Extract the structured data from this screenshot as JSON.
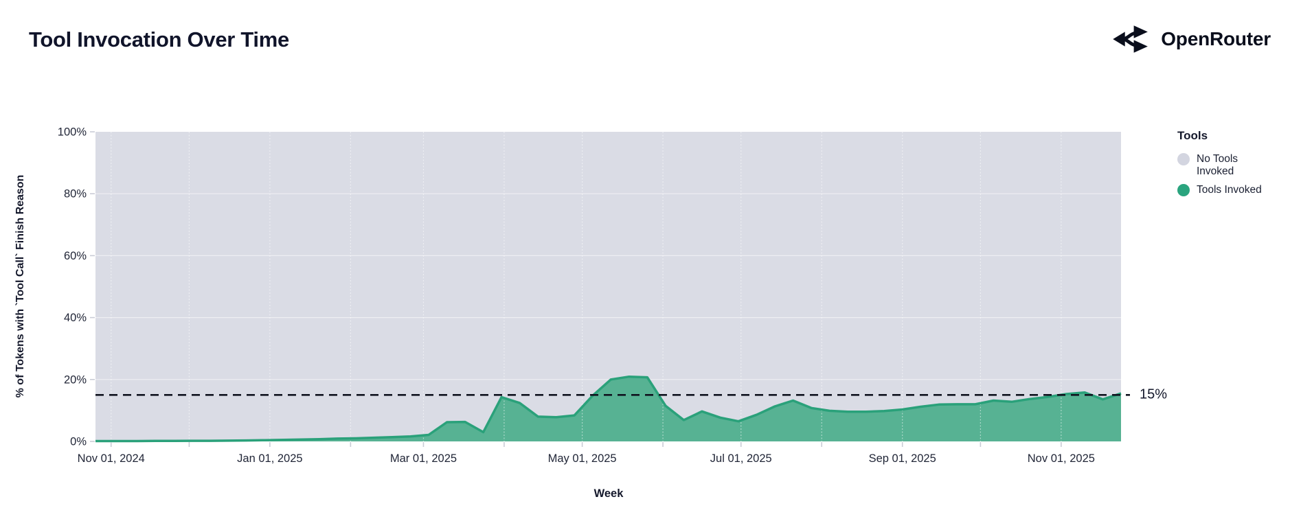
{
  "header": {
    "title": "Tool Invocation Over Time",
    "brand": "OpenRouter"
  },
  "legend": {
    "title": "Tools",
    "items": [
      {
        "label": "No Tools Invoked",
        "color": "#d3d5e0"
      },
      {
        "label": "Tools Invoked",
        "color": "#2aa47e"
      }
    ]
  },
  "annotation": {
    "label": "15%",
    "value": 15
  },
  "chart_data": {
    "type": "area",
    "stacked": true,
    "title": "Tool Invocation Over Time",
    "xlabel": "Week",
    "ylabel": "% of Tokens with `Tool Call` Finish Reason",
    "ylim": [
      0,
      100
    ],
    "grid": true,
    "legend_position": "right",
    "domain": {
      "start": "2024-10-26",
      "end": "2025-11-24"
    },
    "yticks": [
      {
        "value": 0,
        "label": "0%"
      },
      {
        "value": 20,
        "label": "20%"
      },
      {
        "value": 40,
        "label": "40%"
      },
      {
        "value": 60,
        "label": "60%"
      },
      {
        "value": 80,
        "label": "80%"
      },
      {
        "value": 100,
        "label": "100%"
      }
    ],
    "xticks": [
      {
        "date": "2024-11-01",
        "label": "Nov 01, 2024"
      },
      {
        "date": "2025-01-01",
        "label": "Jan 01, 2025"
      },
      {
        "date": "2025-03-01",
        "label": "Mar 01, 2025"
      },
      {
        "date": "2025-05-01",
        "label": "May 01, 2025"
      },
      {
        "date": "2025-07-01",
        "label": "Jul 01, 2025"
      },
      {
        "date": "2025-09-01",
        "label": "Sep 01, 2025"
      },
      {
        "date": "2025-11-01",
        "label": "Nov 01, 2025"
      }
    ],
    "minor_gridline_dates": [
      "2024-11-01",
      "2024-12-01",
      "2025-01-01",
      "2025-02-01",
      "2025-03-01",
      "2025-04-01",
      "2025-05-01",
      "2025-06-01",
      "2025-07-01",
      "2025-08-01",
      "2025-09-01",
      "2025-10-01",
      "2025-11-01"
    ],
    "x": [
      "2024-10-28",
      "2024-11-04",
      "2024-11-11",
      "2024-11-18",
      "2024-11-25",
      "2024-12-02",
      "2024-12-09",
      "2024-12-16",
      "2024-12-23",
      "2024-12-30",
      "2025-01-06",
      "2025-01-13",
      "2025-01-20",
      "2025-01-27",
      "2025-02-03",
      "2025-02-10",
      "2025-02-17",
      "2025-02-24",
      "2025-03-03",
      "2025-03-10",
      "2025-03-17",
      "2025-03-24",
      "2025-03-31",
      "2025-04-07",
      "2025-04-14",
      "2025-04-21",
      "2025-04-28",
      "2025-05-05",
      "2025-05-12",
      "2025-05-19",
      "2025-05-26",
      "2025-06-02",
      "2025-06-09",
      "2025-06-16",
      "2025-06-23",
      "2025-06-30",
      "2025-07-07",
      "2025-07-14",
      "2025-07-21",
      "2025-07-28",
      "2025-08-04",
      "2025-08-11",
      "2025-08-18",
      "2025-08-25",
      "2025-09-01",
      "2025-09-08",
      "2025-09-15",
      "2025-09-22",
      "2025-09-29",
      "2025-10-06",
      "2025-10-13",
      "2025-10-20",
      "2025-10-27",
      "2025-11-03",
      "2025-11-10",
      "2025-11-17",
      "2025-11-24"
    ],
    "series": [
      {
        "name": "Tools Invoked",
        "fill": "#57b293",
        "stroke": "#2aa17a",
        "values": [
          0.1,
          0.1,
          0.12,
          0.15,
          0.15,
          0.2,
          0.2,
          0.25,
          0.3,
          0.4,
          0.5,
          0.6,
          0.7,
          0.9,
          1.0,
          1.2,
          1.4,
          1.6,
          2.1,
          6.2,
          6.3,
          3.0,
          14.3,
          12.4,
          8.0,
          7.8,
          8.4,
          14.8,
          20.0,
          20.9,
          20.7,
          11.5,
          6.9,
          9.7,
          7.7,
          6.5,
          8.6,
          11.3,
          13.2,
          10.8,
          9.9,
          9.6,
          9.6,
          9.8,
          10.3,
          11.2,
          11.9,
          12.0,
          12.0,
          13.2,
          12.8,
          13.7,
          14.4,
          15.3,
          15.8,
          13.6,
          15.5
        ]
      },
      {
        "name": "No Tools Invoked",
        "fill": "#dadce5",
        "derived": "100 minus Tools Invoked (stacked remainder to 100%)"
      }
    ],
    "reference_line": {
      "value": 15,
      "label": "15%",
      "style": "dashed",
      "color": "#10131f"
    }
  },
  "colors": {
    "title_text": "#10142a",
    "axis_text": "#212637",
    "tick_mark": "#c9ccd6",
    "gridline": "#ffffff",
    "no_tools_area": "#dadce5",
    "tools_fill": "#57b293",
    "tools_stroke": "#2aa17a",
    "dashed_line": "#10131f"
  }
}
